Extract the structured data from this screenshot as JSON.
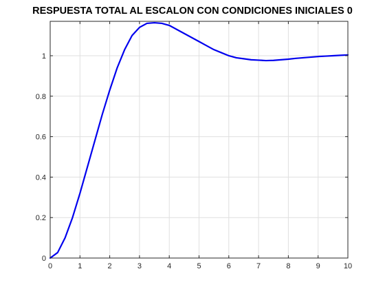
{
  "chart_data": {
    "type": "line",
    "title": "RESPUESTA TOTAL AL ESCALON CON CONDICIONES INICIALES 0",
    "xlabel": "",
    "ylabel": "",
    "xlim": [
      0,
      10
    ],
    "ylim": [
      0,
      1.17
    ],
    "grid": true,
    "x_ticks": [
      "0",
      "1",
      "2",
      "3",
      "4",
      "5",
      "6",
      "7",
      "8",
      "9",
      "10"
    ],
    "y_ticks": [
      "0",
      "0.2",
      "0.4",
      "0.6",
      "0.8",
      "1"
    ],
    "series": [
      {
        "color": "#0000ee",
        "x": [
          0,
          0.25,
          0.5,
          0.75,
          1.0,
          1.25,
          1.5,
          1.75,
          2.0,
          2.25,
          2.5,
          2.75,
          3.0,
          3.25,
          3.5,
          3.75,
          4.0,
          4.25,
          4.5,
          4.75,
          5.0,
          5.25,
          5.5,
          5.75,
          6.0,
          6.25,
          6.5,
          6.75,
          7.0,
          7.25,
          7.5,
          7.75,
          8.0,
          8.25,
          8.5,
          8.75,
          9.0,
          9.25,
          9.5,
          9.75,
          10.0
        ],
        "y": [
          0,
          0.027,
          0.1,
          0.2,
          0.32,
          0.45,
          0.58,
          0.71,
          0.83,
          0.94,
          1.03,
          1.1,
          1.14,
          1.16,
          1.163,
          1.16,
          1.15,
          1.13,
          1.11,
          1.09,
          1.07,
          1.05,
          1.03,
          1.015,
          1.0,
          0.99,
          0.985,
          0.98,
          0.978,
          0.976,
          0.977,
          0.98,
          0.983,
          0.987,
          0.99,
          0.993,
          0.996,
          0.998,
          1.0,
          1.002,
          1.004
        ]
      }
    ]
  }
}
